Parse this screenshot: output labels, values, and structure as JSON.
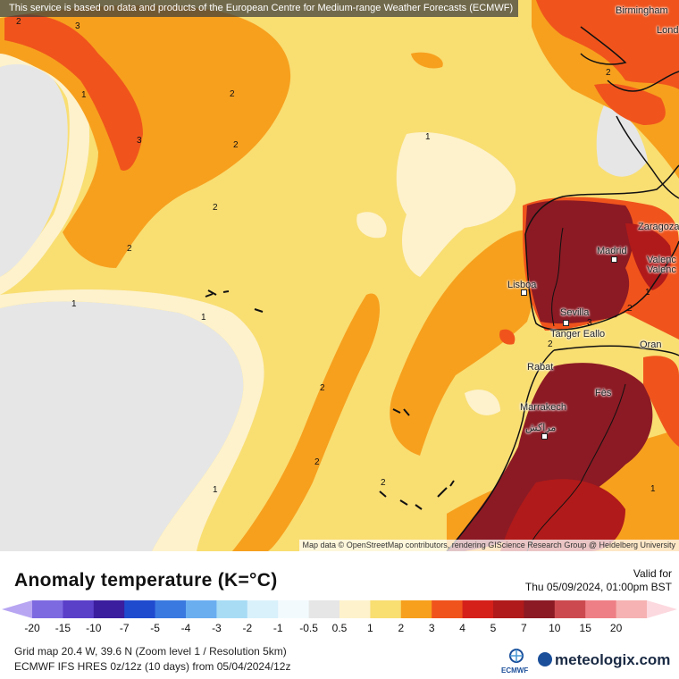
{
  "attribution_top": "This service is based on data and products of the European Centre for Medium-range Weather Forecasts (ECMWF)",
  "attribution_bottom": "Map data © OpenStreetMap contributors, rendering GIScience Research Group @ Heidelberg University",
  "map": {
    "cities": [
      "Birmingham",
      "Lond",
      "Zaragoza",
      "Madrid",
      "Valenc",
      "Valenc",
      "Lisboa",
      "Sevilla",
      "Tanger Eallo",
      "Oran",
      "Rabat",
      "Fès",
      "Marrakech",
      "مراكش"
    ],
    "contour_labels": [
      "1",
      "2",
      "3"
    ]
  },
  "legend": {
    "title": "Anomaly temperature (K=°C)",
    "valid_label": "Valid for",
    "valid_time": "Thu 05/09/2024, 01:00pm BST",
    "ticks": [
      "-20",
      "-15",
      "-10",
      "-7",
      "-5",
      "-4",
      "-3",
      "-2",
      "-1",
      "-0.5",
      "0.5",
      "1",
      "2",
      "3",
      "4",
      "5",
      "7",
      "10",
      "15",
      "20"
    ],
    "colors": [
      "#b8a6f2",
      "#7e6ae0",
      "#5a3fc9",
      "#3a1e9e",
      "#1f4bcf",
      "#3a79e0",
      "#6aaef0",
      "#a8dcf5",
      "#d9f1fb",
      "#f2fafd",
      "#e6e6e6",
      "#fdf2cc",
      "#f9de72",
      "#f7a01e",
      "#f0541c",
      "#d5201a",
      "#b01a1a",
      "#8b1a24",
      "#cc4a4f",
      "#ee7f86",
      "#f6b2b2",
      "#fcd9df"
    ]
  },
  "footer": {
    "grid": "Grid map 20.4 W, 39.6 N (Zoom level 1 / Resolution 5km)",
    "model": "ECMWF IFS HRES 0z/12z (10 days) from 05/04/2024/12z",
    "ecmwf_label": "ECMWF",
    "brand": "meteologix.com"
  }
}
